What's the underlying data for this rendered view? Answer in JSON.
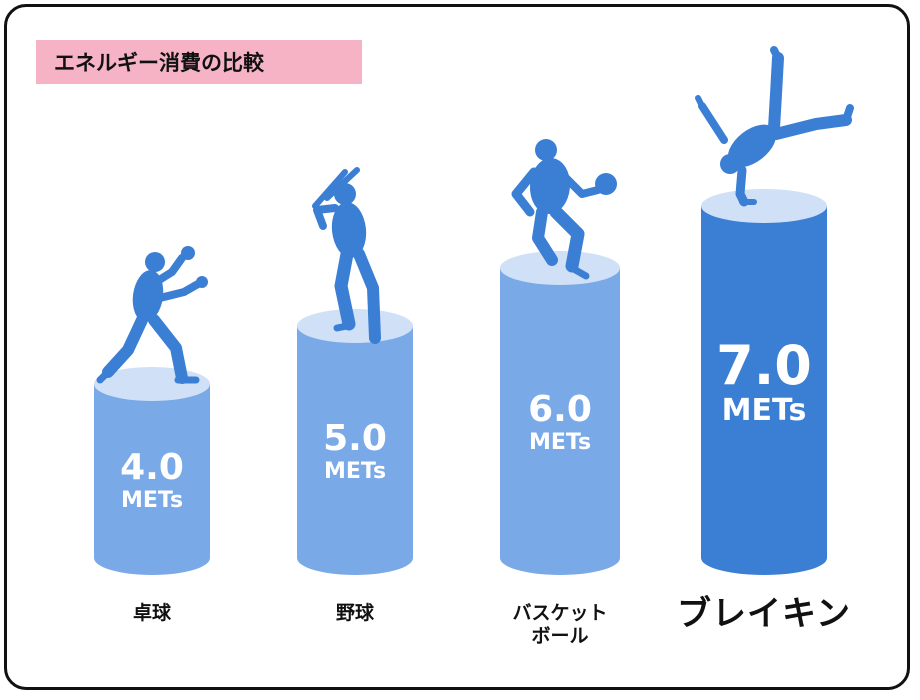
{
  "title": "エネルギー消費の比較",
  "chart_data": {
    "type": "bar",
    "title": "エネルギー消費の比較",
    "categories": [
      "卓球",
      "野球",
      "バスケットボール",
      "ブレイキン"
    ],
    "category_display": [
      [
        "卓球"
      ],
      [
        "野球"
      ],
      [
        "バスケット",
        "ボール"
      ],
      [
        "ブレイキン"
      ]
    ],
    "values": [
      4.0,
      5.0,
      6.0,
      7.0
    ],
    "value_labels": [
      "4.0",
      "5.0",
      "6.0",
      "7.0"
    ],
    "unit": "METs",
    "highlight_index": 3,
    "icons": [
      "table-tennis-player-icon",
      "baseball-batter-icon",
      "basketball-player-icon",
      "breakdancer-icon"
    ]
  },
  "colors": {
    "bar_light": "#7aa9e8",
    "bar_top_light": "#cfe0f7",
    "bar_highlight": "#3b7fd5",
    "bar_top_highlight": "#cfe0f7",
    "silhouette": "#3b7fd5",
    "title_bg": "#f6b3c6",
    "label_text": "#ffffff"
  }
}
